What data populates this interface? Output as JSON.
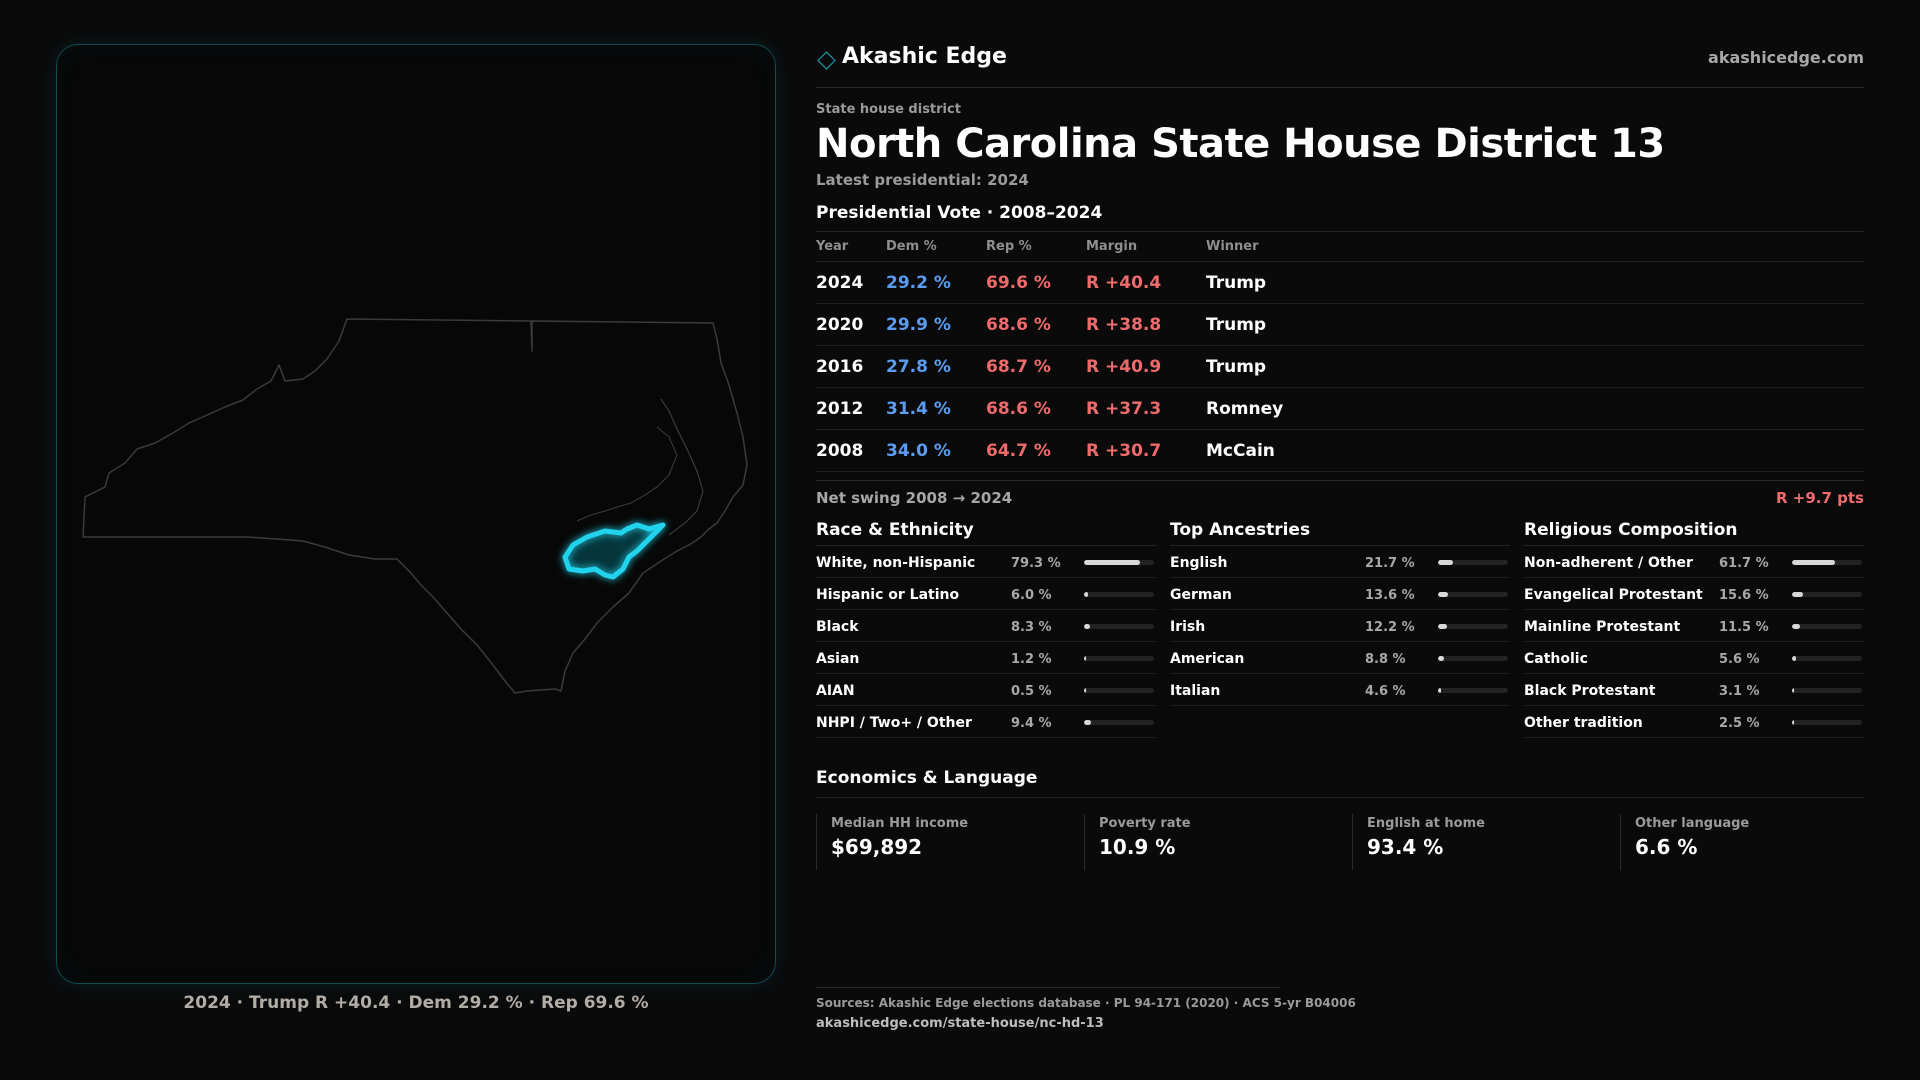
{
  "brand": {
    "name": "Akashic Edge",
    "url": "akashicedge.com",
    "accent": "#1fa6bc"
  },
  "district": {
    "kicker": "State house district",
    "title": "North Carolina State House District 13",
    "subtitle": "Latest presidential: 2024"
  },
  "map": {
    "state_outline_color": "#3a3a3a",
    "highlight_color": "#22d3ee",
    "caption": "2024 · Trump R +40.4 · Dem 29.2 % · Rep 69.6 %"
  },
  "presidential": {
    "title": "Presidential Vote · 2008–2024",
    "headers": [
      "Year",
      "Dem %",
      "Rep %",
      "Margin",
      "Winner"
    ],
    "rows": [
      {
        "year": "2024",
        "dem": "29.2 %",
        "rep": "69.6 %",
        "margin": "R +40.4",
        "winner": "Trump"
      },
      {
        "year": "2020",
        "dem": "29.9 %",
        "rep": "68.6 %",
        "margin": "R +38.8",
        "winner": "Trump"
      },
      {
        "year": "2016",
        "dem": "27.8 %",
        "rep": "68.7 %",
        "margin": "R +40.9",
        "winner": "Trump"
      },
      {
        "year": "2012",
        "dem": "31.4 %",
        "rep": "68.6 %",
        "margin": "R +37.3",
        "winner": "Romney"
      },
      {
        "year": "2008",
        "dem": "34.0 %",
        "rep": "64.7 %",
        "margin": "R +30.7",
        "winner": "McCain"
      }
    ],
    "dem_color": "#5b9cf0",
    "rep_color": "#ef6b6b"
  },
  "swing": {
    "label": "Net swing 2008 → 2024",
    "value": "R +9.7 pts"
  },
  "race": {
    "title": "Race & Ethnicity",
    "items": [
      {
        "label": "White, non-Hispanic",
        "value": "79.3 %",
        "share": 0.793
      },
      {
        "label": "Hispanic or Latino",
        "value": "6.0 %",
        "share": 0.06
      },
      {
        "label": "Black",
        "value": "8.3 %",
        "share": 0.083
      },
      {
        "label": "Asian",
        "value": "1.2 %",
        "share": 0.012
      },
      {
        "label": "AIAN",
        "value": "0.5 %",
        "share": 0.005
      },
      {
        "label": "NHPI / Two+ / Other",
        "value": "9.4 %",
        "share": 0.094
      }
    ]
  },
  "ancestry": {
    "title": "Top Ancestries",
    "items": [
      {
        "label": "English",
        "value": "21.7 %",
        "share": 0.217
      },
      {
        "label": "German",
        "value": "13.6 %",
        "share": 0.136
      },
      {
        "label": "Irish",
        "value": "12.2 %",
        "share": 0.122
      },
      {
        "label": "American",
        "value": "8.8 %",
        "share": 0.088
      },
      {
        "label": "Italian",
        "value": "4.6 %",
        "share": 0.046
      }
    ]
  },
  "religion": {
    "title": "Religious Composition",
    "items": [
      {
        "label": "Non-adherent / Other",
        "value": "61.7 %",
        "share": 0.617
      },
      {
        "label": "Evangelical Protestant",
        "value": "15.6 %",
        "share": 0.156
      },
      {
        "label": "Mainline Protestant",
        "value": "11.5 %",
        "share": 0.115
      },
      {
        "label": "Catholic",
        "value": "5.6 %",
        "share": 0.056
      },
      {
        "label": "Black Protestant",
        "value": "3.1 %",
        "share": 0.031
      },
      {
        "label": "Other tradition",
        "value": "2.5 %",
        "share": 0.025
      }
    ]
  },
  "economics": {
    "title": "Economics & Language",
    "cells": [
      {
        "label": "Median HH income",
        "value": "$69,892"
      },
      {
        "label": "Poverty rate",
        "value": "10.9 %"
      },
      {
        "label": "English at home",
        "value": "93.4 %"
      },
      {
        "label": "Other language",
        "value": "6.6 %"
      }
    ]
  },
  "sources": {
    "line": "Sources: Akashic Edge elections database · PL 94-171 (2020) · ACS 5-yr B04006",
    "url": "akashicedge.com/state-house/nc-hd-13"
  }
}
